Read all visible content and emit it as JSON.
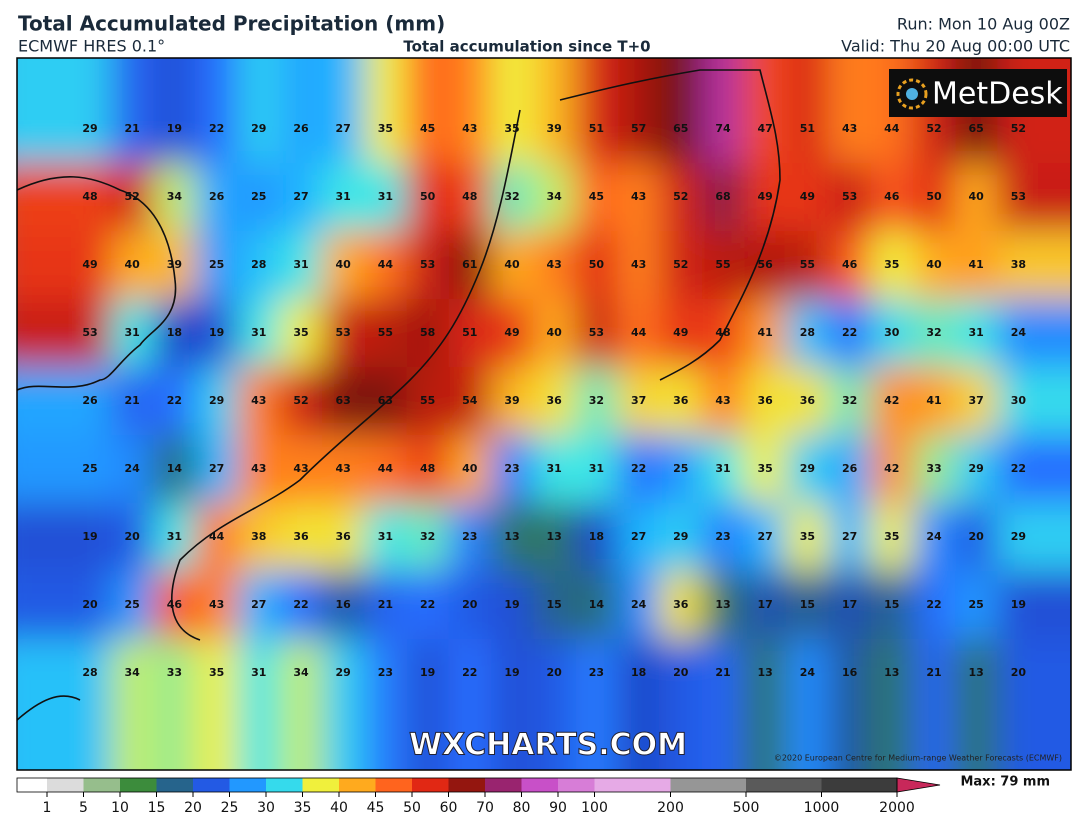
{
  "header": {
    "title": "Total Accumulated Precipitation (mm)",
    "model": "ECMWF HRES 0.1°",
    "subtitle": "Total accumulation since T+0",
    "run": "Run: Mon 10 Aug 00Z",
    "valid": "Valid: Thu 20 Aug 00:00 UTC"
  },
  "logo": "MetDesk",
  "watermark": "WXCHARTS.COM",
  "copyright": "©2020 European Centre for Medium-range Weather Forecasts (ECMWF)",
  "grid": {
    "rows": [
      [
        29,
        21,
        19,
        22,
        29,
        26,
        27,
        35,
        45,
        43,
        35,
        39,
        51,
        57,
        65,
        74,
        47,
        51,
        43,
        44,
        52,
        65,
        52
      ],
      [
        48,
        52,
        34,
        26,
        25,
        27,
        31,
        31,
        50,
        48,
        32,
        34,
        45,
        43,
        52,
        68,
        49,
        49,
        53,
        46,
        50,
        40,
        53
      ],
      [
        49,
        40,
        39,
        25,
        28,
        31,
        40,
        44,
        53,
        61,
        40,
        43,
        50,
        43,
        52,
        55,
        56,
        55,
        46,
        35,
        40,
        41,
        38
      ],
      [
        53,
        31,
        18,
        19,
        31,
        35,
        53,
        55,
        58,
        51,
        49,
        40,
        53,
        44,
        49,
        48,
        41,
        28,
        22,
        30,
        32,
        31,
        24
      ],
      [
        26,
        21,
        22,
        29,
        43,
        52,
        63,
        63,
        55,
        54,
        39,
        36,
        32,
        37,
        36,
        43,
        36,
        36,
        32,
        42,
        41,
        37,
        30
      ],
      [
        25,
        24,
        14,
        27,
        43,
        43,
        43,
        44,
        48,
        40,
        23,
        31,
        31,
        22,
        25,
        31,
        35,
        29,
        26,
        42,
        33,
        29,
        22
      ],
      [
        19,
        20,
        31,
        44,
        38,
        36,
        36,
        31,
        32,
        23,
        13,
        13,
        18,
        27,
        29,
        23,
        27,
        35,
        27,
        35,
        24,
        20,
        29
      ],
      [
        20,
        25,
        46,
        43,
        27,
        22,
        16,
        21,
        22,
        20,
        19,
        15,
        14,
        24,
        36,
        13,
        17,
        15,
        17,
        15,
        22,
        25,
        19
      ],
      [
        28,
        34,
        33,
        35,
        31,
        34,
        29,
        23,
        19,
        22,
        19,
        20,
        23,
        18,
        20,
        21,
        13,
        24,
        16,
        13,
        21,
        13,
        20
      ]
    ]
  },
  "colorbar": {
    "levels": [
      1,
      5,
      10,
      15,
      20,
      25,
      30,
      35,
      40,
      45,
      50,
      60,
      70,
      80,
      90,
      100,
      200,
      500,
      1000,
      2000
    ],
    "max_label": "Max: 79 mm"
  }
}
